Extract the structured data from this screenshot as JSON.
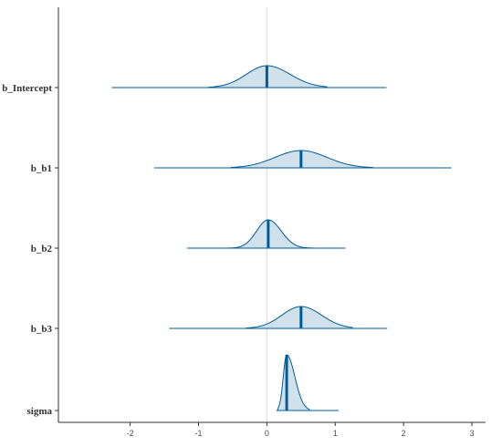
{
  "chart_data": {
    "type": "density-ridges",
    "title": "",
    "xlabel": "",
    "ylabel": "",
    "xlim": [
      -3.05,
      3.2
    ],
    "x_ticks": [
      -2,
      -1,
      0,
      1,
      2,
      3
    ],
    "x_tick_labels": [
      "-2",
      "-1",
      "0",
      "1",
      "2",
      "3"
    ],
    "reference_x": 0,
    "grid": false,
    "colors": {
      "fill": "#d1e1ec",
      "line": "#005b96",
      "axis": "#333333",
      "ref": "#d9d9d9"
    },
    "series": [
      {
        "name": "b_Intercept",
        "median": 0.0,
        "inner": [
          -0.85,
          0.88
        ],
        "outer": [
          -2.27,
          1.75
        ],
        "mode": 0.0,
        "sd_left": 0.3,
        "sd_right": 0.34
      },
      {
        "name": "b_b1",
        "median": 0.5,
        "inner": [
          -0.52,
          1.55
        ],
        "outer": [
          -1.65,
          2.7
        ],
        "mode": 0.5,
        "sd_left": 0.38,
        "sd_right": 0.38
      },
      {
        "name": "b_b2",
        "median": 0.02,
        "inner": [
          -0.72,
          0.68
        ],
        "outer": [
          -1.17,
          1.15
        ],
        "mode": 0.02,
        "sd_left": 0.17,
        "sd_right": 0.19
      },
      {
        "name": "b_b3",
        "median": 0.5,
        "inner": [
          -0.3,
          1.25
        ],
        "outer": [
          -1.43,
          1.76
        ],
        "mode": 0.5,
        "sd_left": 0.28,
        "sd_right": 0.3
      },
      {
        "name": "sigma",
        "median": 0.29,
        "inner": [
          0.16,
          0.62
        ],
        "outer": [
          0.14,
          1.05
        ],
        "mode": 0.29,
        "sd_left": 0.05,
        "sd_right": 0.12
      }
    ]
  }
}
